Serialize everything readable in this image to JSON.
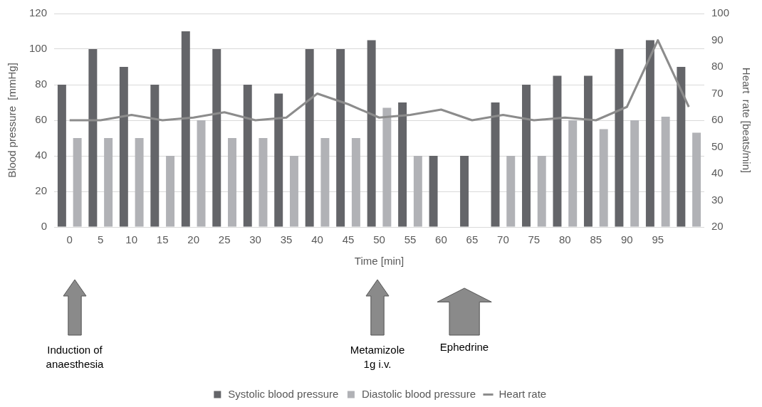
{
  "chart_data": {
    "type": "bar",
    "xlabel": "Time [min]",
    "ylabel": "Blood pressure  [mmHg]",
    "y2label": "Heart  rate [beats/min]",
    "categories": [
      "0",
      "5",
      "10",
      "15",
      "20",
      "25",
      "30",
      "35",
      "40",
      "45",
      "50",
      "55",
      "60",
      "65",
      "70",
      "75",
      "80",
      "85",
      "90",
      "95",
      null
    ],
    "series": [
      {
        "name": "Systolic blood pressure",
        "color": "#646569",
        "values": [
          80,
          100,
          90,
          80,
          110,
          100,
          80,
          75,
          100,
          100,
          105,
          70,
          40,
          40,
          70,
          80,
          85,
          85,
          100,
          105,
          90
        ]
      },
      {
        "name": "Diastolic blood pressure",
        "color": "#b1b2b6",
        "values": [
          50,
          50,
          50,
          40,
          60,
          50,
          50,
          40,
          50,
          50,
          67,
          40,
          null,
          null,
          40,
          40,
          60,
          55,
          60,
          62,
          53
        ]
      },
      {
        "name": "Heart rate",
        "type": "line",
        "axis": "y2",
        "color": "#8c8c8c",
        "values": [
          60,
          60,
          62,
          60,
          61,
          63,
          60,
          61,
          70,
          66,
          61,
          62,
          64,
          60,
          62,
          60,
          61,
          60,
          65,
          90,
          65
        ]
      }
    ],
    "ylim": [
      0,
      120
    ],
    "yticks": [
      0,
      20,
      40,
      60,
      80,
      100,
      120
    ],
    "y2lim": [
      20,
      100
    ],
    "y2ticks": [
      20,
      30,
      40,
      50,
      60,
      70,
      80,
      90,
      100
    ],
    "grid": "y",
    "legend": "bottom",
    "marker": "none",
    "annotations": [
      "Induction of anaesthesia",
      "Metamizole 1g i.v.",
      "Ephedrine"
    ]
  }
}
